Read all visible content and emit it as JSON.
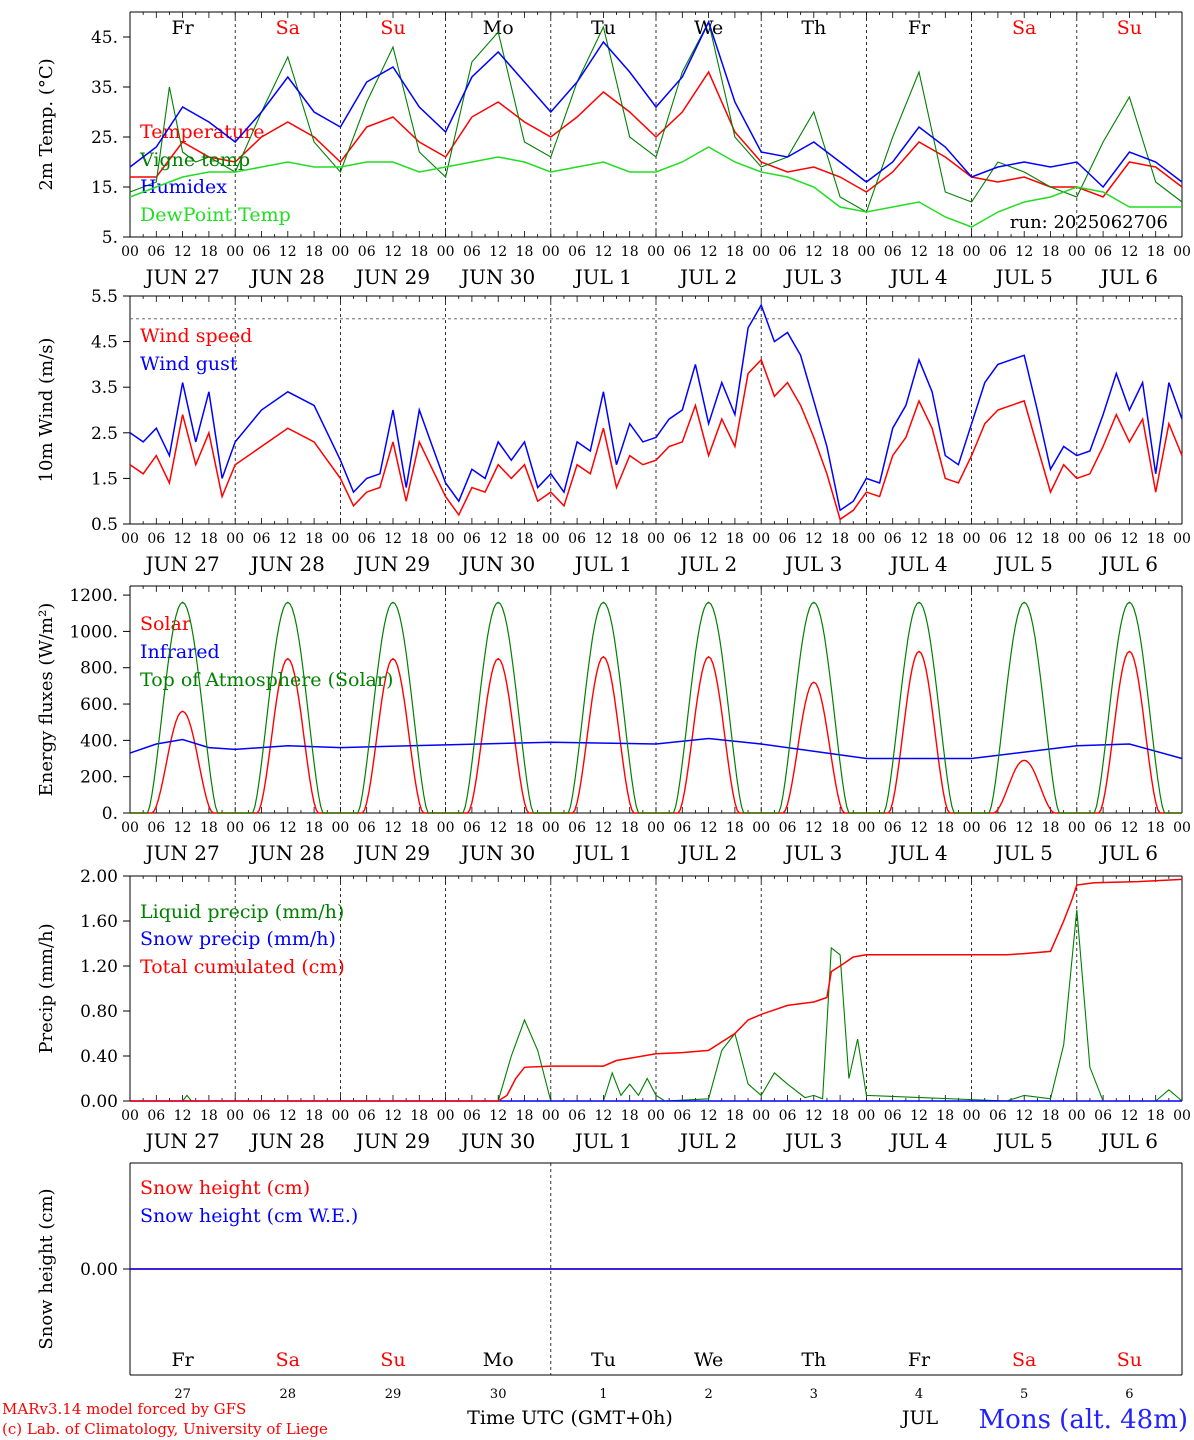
{
  "meta": {
    "run_label": "run: 2025062706",
    "credit_line1": "MARv3.14 model forced by GFS",
    "credit_line2": "(c) Lab. of Climatology, University of Liege",
    "time_axis_label": "Time UTC (GMT+0h)",
    "month_label": "JUL",
    "station": "Mons (alt. 48m)"
  },
  "colors": {
    "red": "#ff0000",
    "blue": "#0000ff",
    "green": "#008000",
    "lightgreen": "#22dd22"
  },
  "days": {
    "weekday_labels": [
      "Fr",
      "Sa",
      "Su",
      "Mo",
      "Tu",
      "We",
      "Th",
      "Fr",
      "Sa",
      "Su"
    ],
    "weekend_flags": [
      false,
      true,
      true,
      false,
      false,
      false,
      false,
      false,
      true,
      true
    ],
    "date_labels": [
      "JUN 27",
      "JUN 28",
      "JUN 29",
      "JUN 30",
      "JUL 1",
      "JUL 2",
      "JUL 3",
      "JUL 4",
      "JUL 5",
      "JUL 6"
    ],
    "hour_labels": [
      "00",
      "06",
      "12",
      "18"
    ],
    "day_numbers": [
      "27",
      "28",
      "29",
      "30",
      "1",
      "2",
      "3",
      "4",
      "5",
      "6"
    ]
  },
  "chart_data": [
    {
      "id": "temperature",
      "type": "line",
      "ylabel": "2m Temp. (°C)",
      "ylim": [
        5,
        50
      ],
      "yticks": [
        "5.",
        "15.",
        "25.",
        "35.",
        "45."
      ],
      "ytick_values": [
        5,
        15,
        25,
        35,
        45
      ],
      "x_unit": "hours since JUN 27 00 UTC",
      "series": [
        {
          "name": "Temperature",
          "color": "#ff0000",
          "x": [
            0,
            6,
            12,
            18,
            24,
            30,
            36,
            42,
            48,
            54,
            60,
            66,
            72,
            78,
            84,
            90,
            96,
            102,
            108,
            114,
            120,
            126,
            132,
            138,
            144,
            150,
            156,
            162,
            168,
            174,
            180,
            186,
            192,
            198,
            204,
            210,
            216,
            222,
            228,
            234,
            240
          ],
          "y": [
            17,
            17,
            24,
            21,
            20,
            25,
            28,
            25,
            20,
            27,
            29,
            24,
            21,
            29,
            32,
            28,
            25,
            29,
            34,
            30,
            25,
            30,
            38,
            26,
            20,
            18,
            19,
            17,
            14,
            18,
            24,
            21,
            17,
            16,
            17,
            15,
            15,
            13,
            20,
            19,
            15
          ]
        },
        {
          "name": "Vigne temp",
          "color": "#008000",
          "x": [
            0,
            6,
            9,
            12,
            15,
            18,
            24,
            30,
            36,
            42,
            48,
            54,
            60,
            66,
            72,
            78,
            84,
            90,
            96,
            102,
            108,
            114,
            120,
            126,
            132,
            138,
            144,
            150,
            156,
            162,
            168,
            174,
            180,
            186,
            192,
            198,
            204,
            210,
            216,
            222,
            228,
            234,
            240
          ],
          "y": [
            14,
            16,
            35,
            22,
            20,
            21,
            18,
            30,
            41,
            24,
            18,
            32,
            43,
            22,
            17,
            40,
            46,
            24,
            21,
            36,
            47,
            25,
            21,
            38,
            48,
            25,
            19,
            21,
            30,
            13,
            10,
            25,
            38,
            14,
            12,
            20,
            18,
            15,
            13,
            24,
            33,
            16,
            12
          ]
        },
        {
          "name": "Humidex",
          "color": "#0000ff",
          "x": [
            0,
            6,
            12,
            18,
            24,
            30,
            36,
            42,
            48,
            54,
            60,
            66,
            72,
            78,
            84,
            90,
            96,
            102,
            108,
            114,
            120,
            126,
            132,
            138,
            144,
            150,
            156,
            162,
            168,
            174,
            180,
            186,
            192,
            198,
            204,
            210,
            216,
            222,
            228,
            234,
            240
          ],
          "y": [
            19,
            23,
            31,
            28,
            24,
            30,
            37,
            30,
            27,
            36,
            39,
            31,
            26,
            37,
            42,
            36,
            30,
            36,
            44,
            38,
            31,
            37,
            48,
            32,
            22,
            21,
            24,
            20,
            16,
            20,
            27,
            23,
            17,
            19,
            20,
            19,
            20,
            15,
            22,
            20,
            16
          ]
        },
        {
          "name": "DewPoint Temp",
          "color": "#22dd22",
          "x": [
            0,
            6,
            12,
            18,
            24,
            30,
            36,
            42,
            48,
            54,
            60,
            66,
            72,
            78,
            84,
            90,
            96,
            102,
            108,
            114,
            120,
            126,
            132,
            138,
            144,
            150,
            156,
            162,
            168,
            174,
            180,
            186,
            192,
            198,
            204,
            210,
            216,
            222,
            228,
            234,
            240
          ],
          "y": [
            13,
            15,
            17,
            18,
            18,
            19,
            20,
            19,
            19,
            20,
            20,
            18,
            19,
            20,
            21,
            20,
            18,
            19,
            20,
            18,
            18,
            20,
            23,
            20,
            18,
            17,
            15,
            11,
            10,
            11,
            12,
            9,
            7,
            10,
            12,
            13,
            15,
            14,
            11,
            11,
            11
          ]
        }
      ]
    },
    {
      "id": "wind",
      "type": "line",
      "ylabel": "10m Wind (m/s)",
      "ylim": [
        0.5,
        5.5
      ],
      "yticks": [
        "0.5",
        "1.5",
        "2.5",
        "3.5",
        "4.5",
        "5.5"
      ],
      "ytick_values": [
        0.5,
        1.5,
        2.5,
        3.5,
        4.5,
        5.5
      ],
      "reference_line": 5.0,
      "series": [
        {
          "name": "Wind speed",
          "color": "#ff0000",
          "x": [
            0,
            3,
            6,
            9,
            12,
            15,
            18,
            21,
            24,
            30,
            36,
            42,
            48,
            51,
            54,
            57,
            60,
            63,
            66,
            69,
            72,
            75,
            78,
            81,
            84,
            87,
            90,
            93,
            96,
            99,
            102,
            105,
            108,
            111,
            114,
            117,
            120,
            123,
            126,
            129,
            132,
            135,
            138,
            141,
            144,
            147,
            150,
            153,
            156,
            159,
            162,
            165,
            168,
            171,
            174,
            177,
            180,
            183,
            186,
            189,
            192,
            195,
            198,
            201,
            204,
            207,
            210,
            213,
            216,
            219,
            222,
            225,
            228,
            231,
            234,
            237,
            240
          ],
          "y": [
            1.8,
            1.6,
            2.0,
            1.4,
            2.9,
            1.8,
            2.5,
            1.1,
            1.8,
            2.2,
            2.6,
            2.3,
            1.5,
            0.9,
            1.2,
            1.3,
            2.3,
            1.0,
            2.3,
            1.7,
            1.1,
            0.7,
            1.3,
            1.2,
            1.8,
            1.5,
            1.8,
            1.0,
            1.2,
            0.9,
            1.8,
            1.6,
            2.6,
            1.3,
            2.0,
            1.8,
            1.9,
            2.2,
            2.3,
            3.1,
            2.0,
            2.8,
            2.2,
            3.8,
            4.1,
            3.3,
            3.6,
            3.1,
            2.4,
            1.6,
            0.6,
            0.8,
            1.2,
            1.1,
            2.0,
            2.4,
            3.2,
            2.6,
            1.5,
            1.4,
            2.0,
            2.7,
            3.0,
            3.1,
            3.2,
            2.2,
            1.2,
            1.8,
            1.5,
            1.6,
            2.2,
            2.9,
            2.3,
            2.8,
            1.2,
            2.7,
            2.0
          ]
        },
        {
          "name": "Wind gust",
          "color": "#0000ff",
          "x": [
            0,
            3,
            6,
            9,
            12,
            15,
            18,
            21,
            24,
            30,
            36,
            42,
            48,
            51,
            54,
            57,
            60,
            63,
            66,
            69,
            72,
            75,
            78,
            81,
            84,
            87,
            90,
            93,
            96,
            99,
            102,
            105,
            108,
            111,
            114,
            117,
            120,
            123,
            126,
            129,
            132,
            135,
            138,
            141,
            144,
            147,
            150,
            153,
            156,
            159,
            162,
            165,
            168,
            171,
            174,
            177,
            180,
            183,
            186,
            189,
            192,
            195,
            198,
            201,
            204,
            207,
            210,
            213,
            216,
            219,
            222,
            225,
            228,
            231,
            234,
            237,
            240
          ],
          "y": [
            2.5,
            2.3,
            2.6,
            2.0,
            3.6,
            2.3,
            3.4,
            1.5,
            2.3,
            3.0,
            3.4,
            3.1,
            1.9,
            1.2,
            1.5,
            1.6,
            3.0,
            1.3,
            3.0,
            2.2,
            1.4,
            1.0,
            1.7,
            1.5,
            2.3,
            1.9,
            2.3,
            1.3,
            1.6,
            1.2,
            2.3,
            2.1,
            3.4,
            1.8,
            2.7,
            2.3,
            2.4,
            2.8,
            3.0,
            4.0,
            2.7,
            3.6,
            2.9,
            4.8,
            5.3,
            4.5,
            4.7,
            4.2,
            3.2,
            2.2,
            0.8,
            1.0,
            1.5,
            1.4,
            2.6,
            3.1,
            4.1,
            3.4,
            2.0,
            1.8,
            2.7,
            3.6,
            4.0,
            4.1,
            4.2,
            3.0,
            1.7,
            2.2,
            2.0,
            2.1,
            2.9,
            3.8,
            3.0,
            3.6,
            1.6,
            3.6,
            2.8
          ]
        }
      ]
    },
    {
      "id": "energy",
      "type": "line",
      "ylabel": "Energy fluxes (W/m²)",
      "ylim": [
        0,
        1250
      ],
      "yticks": [
        "0.",
        "200.",
        "400.",
        "600.",
        "800.",
        "1000.",
        "1200."
      ],
      "ytick_values": [
        0,
        200,
        400,
        600,
        800,
        1000,
        1200
      ],
      "series": [
        {
          "name": "Solar",
          "color": "#ff0000",
          "day_peaks": [
            560,
            850,
            850,
            850,
            860,
            860,
            720,
            890,
            290,
            890
          ]
        },
        {
          "name": "Infrared",
          "color": "#0000ff",
          "x": [
            0,
            6,
            12,
            18,
            24,
            36,
            48,
            72,
            96,
            120,
            132,
            144,
            168,
            192,
            216,
            228,
            240
          ],
          "y": [
            330,
            380,
            405,
            360,
            350,
            370,
            360,
            375,
            390,
            380,
            410,
            380,
            300,
            300,
            370,
            380,
            300
          ]
        },
        {
          "name": "Top of Atmosphere (Solar)",
          "color": "#008000",
          "day_peak": 1160
        }
      ]
    },
    {
      "id": "precip",
      "type": "line",
      "ylabel": "Precip (mm/h)",
      "ylim": [
        0,
        2.0
      ],
      "yticks": [
        "0.00",
        "0.40",
        "0.80",
        "1.20",
        "1.60",
        "2.00"
      ],
      "ytick_values": [
        0,
        0.4,
        0.8,
        1.2,
        1.6,
        2.0
      ],
      "series": [
        {
          "name": "Liquid precip (mm/h)",
          "color": "#008000",
          "x": [
            0,
            12,
            13,
            14,
            84,
            87,
            90,
            93,
            96,
            108,
            110,
            112,
            114,
            116,
            118,
            120,
            122,
            132,
            135,
            138,
            141,
            144,
            147,
            150,
            154,
            156,
            158,
            160,
            162,
            164,
            166,
            168,
            200,
            204,
            210,
            213,
            216,
            219,
            222,
            234,
            237,
            240
          ],
          "y": [
            0,
            0,
            0.05,
            0,
            0,
            0.4,
            0.72,
            0.45,
            0,
            0,
            0.25,
            0.05,
            0.15,
            0.05,
            0.2,
            0.05,
            0,
            0.02,
            0.45,
            0.6,
            0.15,
            0.05,
            0.25,
            0.15,
            0.03,
            0.05,
            0.02,
            1.36,
            1.3,
            0.2,
            0.55,
            0.05,
            0,
            0.05,
            0.02,
            0.5,
            1.7,
            0.3,
            0,
            0,
            0.1,
            0
          ]
        },
        {
          "name": "Snow precip (mm/h)",
          "color": "#0000ff",
          "x": [
            0,
            240
          ],
          "y": [
            0,
            0
          ]
        },
        {
          "name": "Total cumulated (cm)",
          "color": "#ff0000",
          "x": [
            0,
            84,
            86,
            88,
            90,
            96,
            108,
            111,
            114,
            120,
            126,
            132,
            138,
            141,
            144,
            150,
            156,
            159,
            160,
            162,
            165,
            168,
            200,
            204,
            210,
            213,
            215,
            216,
            220,
            230,
            240
          ],
          "y": [
            0,
            0,
            0.05,
            0.2,
            0.3,
            0.31,
            0.31,
            0.36,
            0.38,
            0.42,
            0.43,
            0.45,
            0.6,
            0.72,
            0.77,
            0.85,
            0.88,
            0.92,
            1.15,
            1.2,
            1.28,
            1.3,
            1.3,
            1.31,
            1.33,
            1.6,
            1.8,
            1.92,
            1.94,
            1.95,
            1.97
          ]
        }
      ]
    },
    {
      "id": "snow",
      "type": "line",
      "ylabel": "Snow height (cm)",
      "yticks": [
        "0.00"
      ],
      "ytick_values": [
        0
      ],
      "series": [
        {
          "name": "Snow height (cm)",
          "color": "#ff0000",
          "x": [
            0,
            240
          ],
          "y": [
            0,
            0
          ]
        },
        {
          "name": "Snow height (cm W.E.)",
          "color": "#0000ff",
          "x": [
            0,
            240
          ],
          "y": [
            0,
            0
          ]
        }
      ]
    }
  ]
}
